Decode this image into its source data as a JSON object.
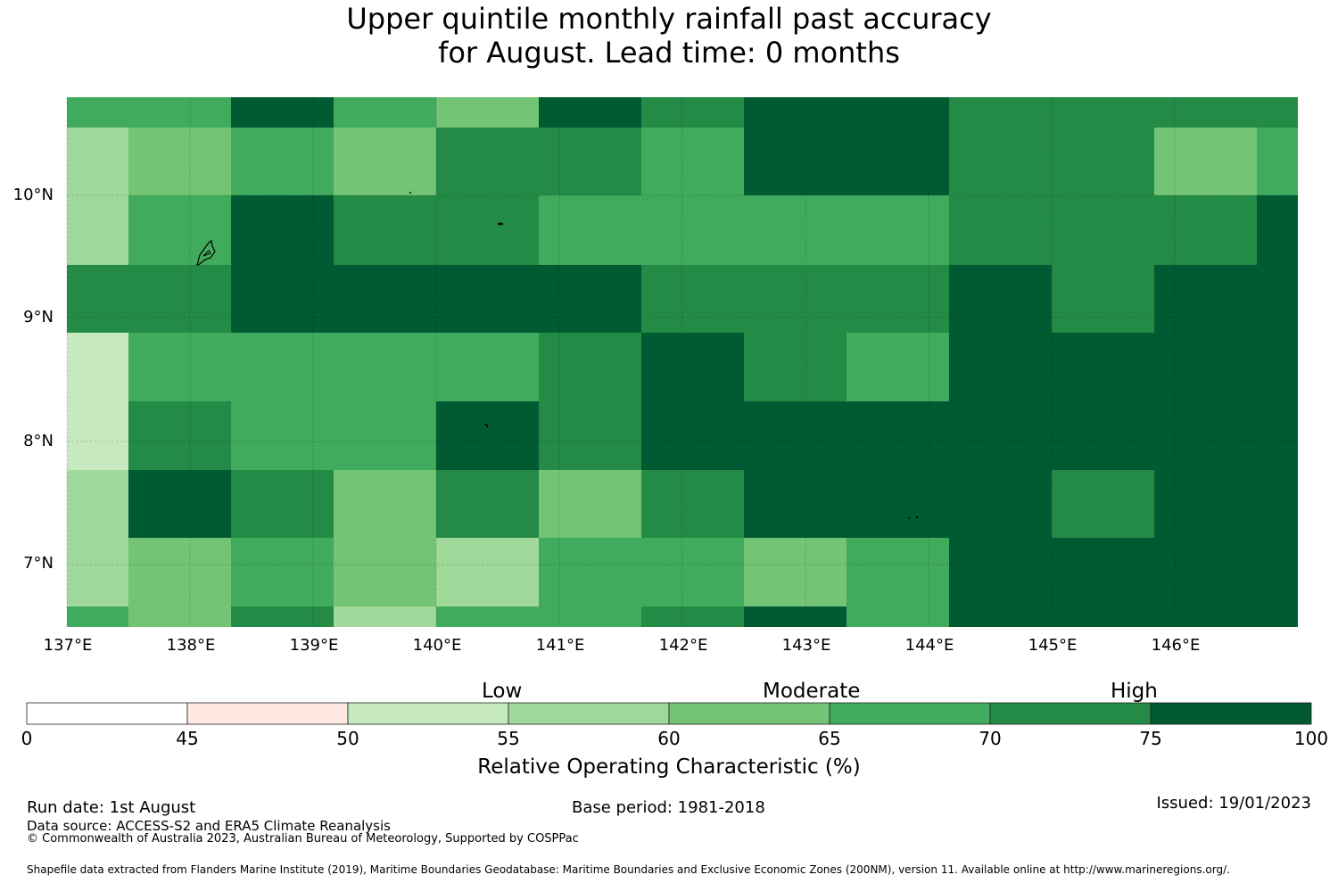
{
  "title": {
    "line1": "Upper quintile monthly rainfall past accuracy",
    "line2": "for August. Lead time: 0 months"
  },
  "map": {
    "longitude_ticks": [
      "137°E",
      "138°E",
      "139°E",
      "140°E",
      "141°E",
      "142°E",
      "143°E",
      "144°E",
      "145°E",
      "146°E"
    ],
    "latitude_ticks": [
      "10°N",
      "9°N",
      "8°N",
      "7°N"
    ],
    "band_values": [
      0,
      45,
      50,
      55,
      60,
      65,
      70,
      75
    ],
    "grid_values_by_row_north_to_south": [
      [
        65,
        65,
        75,
        65,
        60,
        75,
        70,
        75,
        75,
        70,
        70,
        70
      ],
      [
        55,
        60,
        65,
        60,
        70,
        70,
        65,
        75,
        75,
        70,
        70,
        60,
        65
      ],
      [
        55,
        65,
        75,
        70,
        70,
        65,
        65,
        65,
        65,
        70,
        70,
        70,
        75
      ],
      [
        70,
        70,
        75,
        75,
        75,
        75,
        70,
        70,
        70,
        75,
        70,
        75
      ],
      [
        50,
        65,
        65,
        65,
        65,
        70,
        75,
        70,
        65,
        75,
        75,
        75
      ],
      [
        50,
        70,
        65,
        65,
        75,
        70,
        75,
        75,
        75,
        75,
        75,
        75
      ],
      [
        55,
        75,
        70,
        60,
        70,
        60,
        70,
        75,
        75,
        75,
        70,
        75
      ],
      [
        55,
        60,
        65,
        60,
        55,
        65,
        65,
        60,
        65,
        75,
        75,
        75
      ],
      [
        65,
        60,
        70,
        55,
        65,
        65,
        70,
        75,
        65,
        75,
        75,
        75
      ]
    ]
  },
  "colorbar": {
    "category_labels": [
      "Low",
      "Moderate",
      "High"
    ],
    "tick_labels": [
      "0",
      "45",
      "50",
      "55",
      "60",
      "65",
      "70",
      "75",
      "100"
    ],
    "colors": [
      "#ffffff",
      "#fee8e1",
      "#c7e9c0",
      "#a1d99b",
      "#74c476",
      "#41ab5d",
      "#238b45",
      "#005a32"
    ],
    "title": "Relative Operating Characteristic (%)"
  },
  "footer": {
    "run_date": "Run date: 1st August",
    "base_period": "Base period: 1981-2018",
    "issued": "Issued: 19/01/2023",
    "data_source": "Data source: ACCESS-S2 and ERA5 Climate Reanalysis",
    "copyright": "© Commonwealth of Australia 2023, Australian Bureau of Meteorology, Supported by COSPPac",
    "shapefile_note": "Shapefile data extracted from Flanders Marine Institute (2019), Maritime Boundaries Geodatabase: Maritime Boundaries and Exclusive Economic Zones (200NM), version 11. Available online at http://www.marineregions.org/."
  }
}
